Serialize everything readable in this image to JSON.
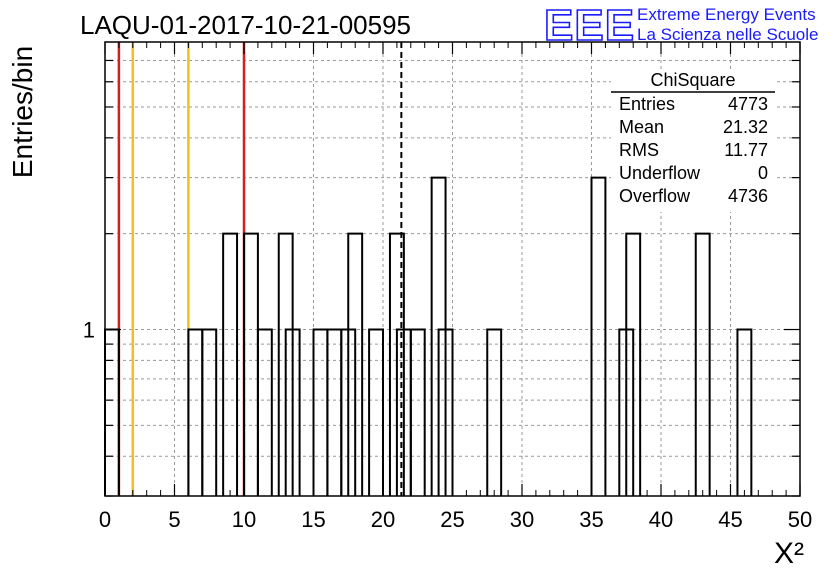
{
  "chart_data": {
    "type": "bar",
    "title": "LAQU-01-2017-10-21-00595",
    "xlabel": "X²",
    "ylabel": "Entries/bin",
    "y_scale": "log",
    "xlim": [
      0,
      50
    ],
    "ylim": [
      0.3,
      8
    ],
    "bin_width": 1,
    "grid": true,
    "x_ticks": [
      0,
      5,
      10,
      15,
      20,
      25,
      30,
      35,
      40,
      45,
      50
    ],
    "y_tick_labels": [
      {
        "value": 1,
        "label": "1"
      }
    ],
    "bins": [
      {
        "x": 0,
        "count": 1
      },
      {
        "x": 6,
        "count": 1
      },
      {
        "x": 7,
        "count": 1
      },
      {
        "x": 8.5,
        "count": 2
      },
      {
        "x": 10,
        "count": 2
      },
      {
        "x": 11,
        "count": 1
      },
      {
        "x": 12.5,
        "count": 2
      },
      {
        "x": 13,
        "count": 1
      },
      {
        "x": 15,
        "count": 1
      },
      {
        "x": 16,
        "count": 1
      },
      {
        "x": 17,
        "count": 1
      },
      {
        "x": 17.5,
        "count": 2
      },
      {
        "x": 19,
        "count": 1
      },
      {
        "x": 20.5,
        "count": 2
      },
      {
        "x": 21,
        "count": 1
      },
      {
        "x": 22,
        "count": 1
      },
      {
        "x": 23.5,
        "count": 3
      },
      {
        "x": 24,
        "count": 1
      },
      {
        "x": 27.5,
        "count": 1
      },
      {
        "x": 35,
        "count": 3
      },
      {
        "x": 37,
        "count": 1
      },
      {
        "x": 37.5,
        "count": 2
      },
      {
        "x": 42.5,
        "count": 2
      },
      {
        "x": 45.5,
        "count": 1
      }
    ],
    "vertical_lines": [
      {
        "x": 1,
        "color": "#d62020",
        "style": "solid"
      },
      {
        "x": 2,
        "color": "#f0c020",
        "style": "solid"
      },
      {
        "x": 6,
        "color": "#f0c020",
        "style": "solid"
      },
      {
        "x": 10,
        "color": "#d62020",
        "style": "solid"
      },
      {
        "x": 21.32,
        "color": "#000000",
        "style": "dashed"
      }
    ],
    "stats_box": {
      "title": "ChiSquare",
      "rows": [
        {
          "label": "Entries",
          "value": "4773"
        },
        {
          "label": "Mean",
          "value": "21.32"
        },
        {
          "label": "RMS",
          "value": "11.77"
        },
        {
          "label": "Underflow",
          "value": "0"
        },
        {
          "label": "Overflow",
          "value": "4736"
        }
      ]
    }
  },
  "logo": {
    "mark": "EEE",
    "line1": "Extreme Energy Events",
    "line2": "La Scienza nelle Scuole",
    "color": "#1a1aff"
  }
}
